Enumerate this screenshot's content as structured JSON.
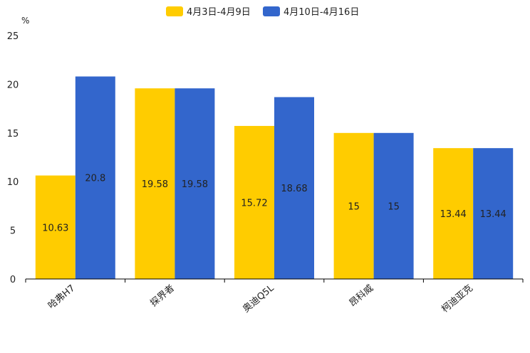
{
  "chart_data": {
    "type": "bar",
    "title": "",
    "unit_label": "%",
    "xlabel": "",
    "ylabel": "",
    "ylim": [
      0,
      25
    ],
    "yticks": [
      0,
      5,
      10,
      15,
      20,
      25
    ],
    "grid": false,
    "legend_position": "top-center",
    "categories": [
      "哈弗H7",
      "探界者",
      "奥迪Q5L",
      "昂科威",
      "柯迪亚克"
    ],
    "series": [
      {
        "name": "4月3日-4月9日",
        "color": "#FFCC00",
        "values": [
          10.63,
          19.58,
          15.72,
          15,
          13.44
        ],
        "labels": [
          "10.63",
          "19.58",
          "15.72",
          "15",
          "13.44"
        ]
      },
      {
        "name": "4月10日-4月16日",
        "color": "#3366CC",
        "values": [
          20.8,
          19.58,
          18.68,
          15,
          13.44
        ],
        "labels": [
          "20.8",
          "19.58",
          "18.68",
          "15",
          "13.44"
        ]
      }
    ]
  }
}
